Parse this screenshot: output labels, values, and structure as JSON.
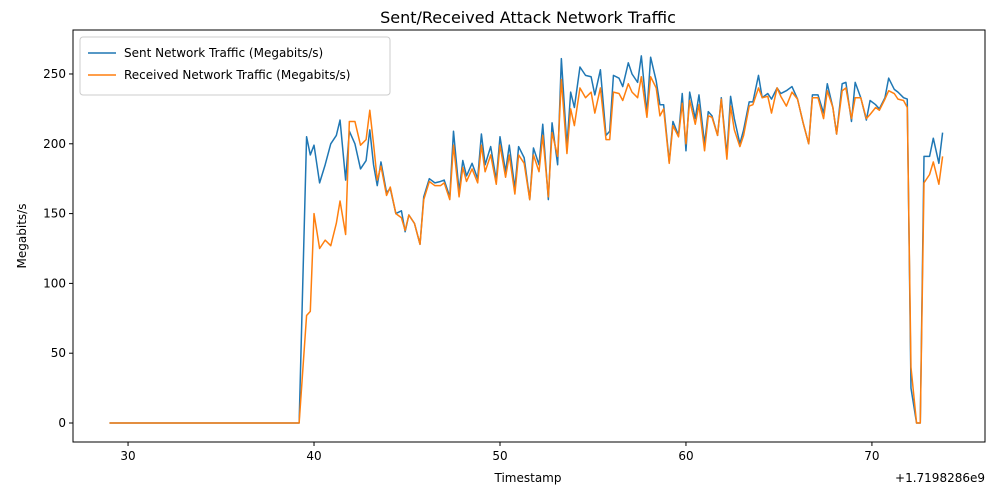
{
  "chart_data": {
    "type": "line",
    "title": "Sent/Received Attack Network Traffic",
    "xlabel": "Timestamp",
    "ylabel": "Megabits/s",
    "x_offset_label": "+1.7198286e9",
    "legend": "upper left",
    "grid": false,
    "x": [
      29,
      30,
      31,
      32,
      33,
      34,
      35,
      36,
      37,
      38,
      39,
      39.2,
      39.6,
      39.8,
      40.0,
      40.3,
      40.6,
      40.9,
      41.2,
      41.4,
      41.7,
      41.9,
      42.2,
      42.5,
      42.8,
      43.0,
      43.2,
      43.4,
      43.6,
      43.9,
      44.1,
      44.4,
      44.7,
      44.9,
      45.1,
      45.4,
      45.7,
      45.9,
      46.2,
      46.5,
      46.8,
      47.0,
      47.3,
      47.5,
      47.8,
      48.0,
      48.2,
      48.5,
      48.8,
      49.0,
      49.2,
      49.5,
      49.8,
      50.0,
      50.3,
      50.5,
      50.8,
      51.0,
      51.3,
      51.6,
      51.8,
      52.1,
      52.3,
      52.6,
      52.8,
      53.1,
      53.3,
      53.6,
      53.8,
      54.0,
      54.3,
      54.6,
      54.9,
      55.1,
      55.4,
      55.7,
      55.9,
      56.1,
      56.4,
      56.6,
      56.9,
      57.1,
      57.4,
      57.6,
      57.9,
      58.1,
      58.4,
      58.6,
      58.8,
      59.1,
      59.3,
      59.6,
      59.8,
      60.0,
      60.2,
      60.5,
      60.7,
      61.0,
      61.2,
      61.4,
      61.7,
      61.9,
      62.2,
      62.4,
      62.6,
      62.9,
      63.1,
      63.4,
      63.6,
      63.9,
      64.1,
      64.4,
      64.6,
      64.9,
      65.1,
      65.4,
      65.7,
      66.0,
      66.3,
      66.6,
      66.8,
      67.1,
      67.4,
      67.6,
      67.9,
      68.1,
      68.4,
      68.6,
      68.9,
      69.1,
      69.4,
      69.7,
      69.9,
      70.2,
      70.4,
      70.7,
      70.9,
      71.2,
      71.4,
      71.7,
      71.9,
      72.1,
      72.4,
      72.6,
      72.8,
      73.1,
      73.3,
      73.6,
      73.8
    ],
    "series": [
      {
        "name": "Sent Network Traffic (Megabits/s)",
        "color": "#1f77b4",
        "values": [
          0,
          0,
          0,
          0,
          0,
          0,
          0,
          0,
          0,
          0,
          0,
          0,
          205,
          192,
          199,
          172,
          185,
          200,
          206,
          217,
          174,
          209,
          200,
          182,
          188,
          210,
          185,
          170,
          187,
          165,
          168,
          150,
          152,
          137,
          149,
          143,
          128,
          162,
          175,
          172,
          173,
          174,
          162,
          209,
          166,
          188,
          177,
          186,
          175,
          207,
          185,
          198,
          174,
          205,
          180,
          199,
          168,
          198,
          190,
          160,
          197,
          185,
          214,
          160,
          215,
          185,
          261,
          198,
          237,
          226,
          255,
          249,
          248,
          235,
          253,
          206,
          209,
          249,
          247,
          241,
          258,
          250,
          244,
          263,
          222,
          262,
          245,
          228,
          228,
          187,
          216,
          206,
          236,
          195,
          237,
          218,
          235,
          200,
          223,
          220,
          206,
          233,
          192,
          234,
          218,
          200,
          210,
          230,
          230,
          249,
          233,
          236,
          232,
          240,
          236,
          238,
          241,
          232,
          215,
          200,
          235,
          235,
          222,
          243,
          226,
          207,
          243,
          244,
          216,
          244,
          233,
          217,
          231,
          228,
          225,
          233,
          247,
          239,
          237,
          233,
          232,
          25,
          0,
          0,
          191,
          191,
          204,
          186,
          208
        ]
      },
      {
        "name": "Received Network Traffic (Megabits/s)",
        "color": "#ff7f0e",
        "values": [
          0,
          0,
          0,
          0,
          0,
          0,
          0,
          0,
          0,
          0,
          0,
          0,
          77,
          80,
          150,
          125,
          131,
          127,
          143,
          159,
          135,
          216,
          216,
          199,
          203,
          224,
          200,
          174,
          184,
          163,
          169,
          150,
          147,
          138,
          149,
          143,
          128,
          160,
          173,
          170,
          170,
          172,
          160,
          199,
          162,
          183,
          173,
          182,
          172,
          199,
          180,
          192,
          171,
          199,
          176,
          192,
          164,
          192,
          186,
          160,
          192,
          180,
          206,
          162,
          208,
          191,
          246,
          193,
          225,
          213,
          240,
          233,
          237,
          222,
          240,
          203,
          203,
          237,
          236,
          231,
          243,
          237,
          233,
          248,
          219,
          248,
          240,
          220,
          225,
          186,
          213,
          205,
          229,
          200,
          231,
          214,
          228,
          195,
          220,
          219,
          206,
          232,
          189,
          227,
          210,
          198,
          206,
          227,
          228,
          240,
          233,
          234,
          222,
          240,
          234,
          227,
          237,
          232,
          215,
          200,
          233,
          233,
          218,
          238,
          226,
          207,
          238,
          240,
          218,
          233,
          233,
          218,
          221,
          226,
          224,
          232,
          238,
          236,
          232,
          231,
          226,
          40,
          0,
          0,
          172,
          178,
          187,
          171,
          191
        ]
      }
    ],
    "xlim": [
      27.04,
      76.08
    ],
    "xticks": [
      30,
      40,
      50,
      60,
      70
    ],
    "ylim": [
      -13.6,
      281.5
    ],
    "yticks": [
      0,
      50,
      100,
      150,
      200,
      250
    ]
  }
}
